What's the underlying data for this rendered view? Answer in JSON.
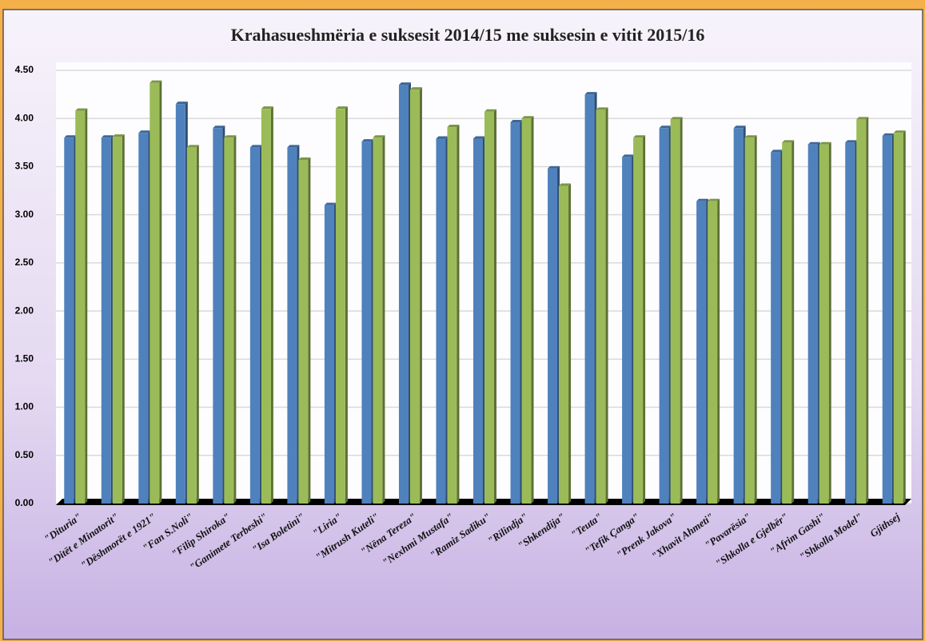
{
  "chart_data": {
    "type": "bar",
    "title": "Krahasueshmëria e suksesit  2014/15 me suksesin e vitit 2015/16",
    "categories": [
      "\"Dituria\"",
      "\"Ditët e Minatorit\"",
      "\"Dëshmorët e 1921\"",
      "\"Fan S.Noli\"",
      "\"Filip Shiroka\"",
      "\"Ganimete Terbeshi\"",
      "\"Isa Boletini\"",
      "\"Liria\"",
      "\"Mitrush Kuteli\"",
      "\"Nëna Tereza\"",
      "\"Nexhmi Mustafa\"",
      "\"Ramiz Sadiku\"",
      "\"Rilindja\"",
      "\"Shkendija\"",
      "\"Teuta\"",
      "\"Tefik Çanga\"",
      "\"Prenk Jakova\"",
      "\"Xhavit Ahmeti\"",
      "\"Pavarësia\"",
      "\"Shkolla e Gjelbër\"",
      "\"Afrim Gashi\"",
      "\"Shkolla Model\"",
      "Gjithsej"
    ],
    "series": [
      {
        "color": "#4f81bd",
        "values": [
          3.8,
          3.8,
          3.85,
          4.15,
          3.9,
          3.7,
          3.7,
          3.1,
          3.76,
          4.35,
          3.79,
          3.79,
          3.96,
          3.48,
          4.25,
          3.6,
          3.9,
          3.14,
          3.9,
          3.65,
          3.73,
          3.75,
          3.82
        ]
      },
      {
        "color": "#9bbb59",
        "values": [
          4.08,
          3.81,
          4.37,
          3.7,
          3.8,
          4.1,
          3.57,
          4.1,
          3.8,
          4.3,
          3.91,
          4.07,
          4.0,
          3.3,
          4.09,
          3.8,
          3.99,
          3.14,
          3.8,
          3.75,
          3.73,
          3.99,
          3.85
        ]
      }
    ],
    "ylim": [
      0,
      4.5
    ],
    "yticks": [
      {
        "value": 0,
        "label": "0.00"
      },
      {
        "value": 0.5,
        "label": "0.50"
      },
      {
        "value": 1,
        "label": "1.00"
      },
      {
        "value": 1.5,
        "label": "1.50"
      },
      {
        "value": 2,
        "label": "2.00"
      },
      {
        "value": 2.5,
        "label": "2.50"
      },
      {
        "value": 3,
        "label": "3.00"
      },
      {
        "value": 3.5,
        "label": "3.50"
      },
      {
        "value": 4,
        "label": "4.00"
      },
      {
        "value": 4.5,
        "label": "4.50"
      }
    ],
    "grid": true
  }
}
